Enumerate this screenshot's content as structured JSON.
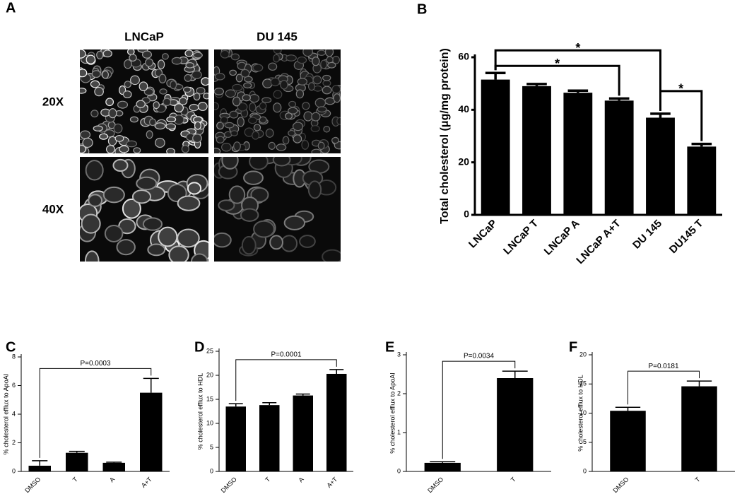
{
  "figure_a": {
    "panel": "A",
    "columns": [
      "LNCaP",
      "DU 145"
    ],
    "rows": [
      "20X",
      "40X"
    ]
  },
  "chart_data": [
    {
      "panel": "B",
      "type": "bar",
      "ylabel": "Total cholesterol (μg/mg protein)",
      "categories": [
        "LNCaP",
        "LNCaP T",
        "LNCaP A",
        "LNCaP A+T",
        "DU 145",
        "DU145 T"
      ],
      "values": [
        51.5,
        49,
        46.5,
        43.5,
        37,
        26
      ],
      "errors": [
        2.5,
        0.8,
        0.8,
        0.8,
        1.5,
        1
      ],
      "color": "#000000",
      "ylim": [
        0,
        60
      ],
      "yticks": [
        0,
        20,
        40,
        60
      ],
      "brackets": [
        {
          "from": "LNCaP",
          "to": "LNCaP A+T",
          "label": "*"
        },
        {
          "from": "LNCaP",
          "to": "DU 145",
          "label": "*"
        },
        {
          "from": "DU 145",
          "to": "DU145 T",
          "label": "*"
        }
      ]
    },
    {
      "panel": "C",
      "type": "bar",
      "ylabel": "% cholesterol efflux to ApoAI",
      "categories": [
        "DMSO",
        "T",
        "A",
        "A+T"
      ],
      "values": [
        0.4,
        1.3,
        0.6,
        5.5
      ],
      "errors": [
        0.35,
        0.1,
        0.05,
        1.0
      ],
      "color": "#000000",
      "ylim": [
        0,
        8
      ],
      "yticks": [
        0,
        2,
        4,
        6,
        8
      ],
      "brackets": [
        {
          "from": "DMSO",
          "to": "A+T",
          "label": "P=0.0003"
        }
      ]
    },
    {
      "panel": "D",
      "type": "bar",
      "ylabel": "% cholesterol efflux to HDL",
      "categories": [
        "DMSO",
        "T",
        "A",
        "A+T"
      ],
      "values": [
        13.5,
        13.8,
        15.8,
        20.3
      ],
      "errors": [
        0.6,
        0.5,
        0.3,
        0.9
      ],
      "color": "#000000",
      "ylim": [
        0,
        25
      ],
      "yticks": [
        0,
        5,
        10,
        15,
        20,
        25
      ],
      "brackets": [
        {
          "from": "DMSO",
          "to": "A+T",
          "label": "P=0.0001"
        }
      ]
    },
    {
      "panel": "E",
      "type": "bar",
      "ylabel": "% cholesterol efflux to ApoAI",
      "categories": [
        "DMSO",
        "T"
      ],
      "values": [
        0.22,
        2.4
      ],
      "errors": [
        0.03,
        0.18
      ],
      "color": "#000000",
      "ylim": [
        0,
        3
      ],
      "yticks": [
        0,
        1,
        2,
        3
      ],
      "brackets": [
        {
          "from": "DMSO",
          "to": "T",
          "label": "P=0.0034"
        }
      ]
    },
    {
      "panel": "F",
      "type": "bar",
      "ylabel": "% cholesterol efflux to HDL",
      "categories": [
        "DMSO",
        "T"
      ],
      "values": [
        10.4,
        14.6
      ],
      "errors": [
        0.6,
        0.9
      ],
      "color": "#000000",
      "ylim": [
        0,
        20
      ],
      "yticks": [
        0,
        5,
        10,
        15,
        20
      ],
      "brackets": [
        {
          "from": "DMSO",
          "to": "T",
          "label": "P=0.0181"
        }
      ]
    }
  ]
}
